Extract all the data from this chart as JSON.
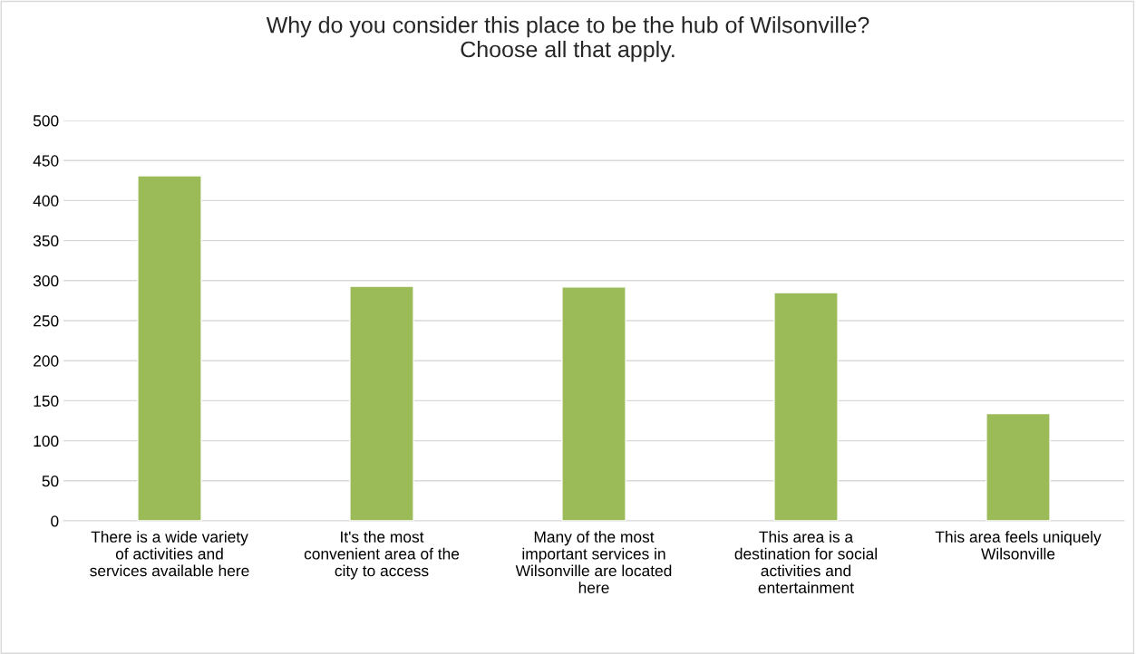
{
  "chart_data": {
    "type": "bar",
    "title": "Why do you consider this place to be the hub of Wilsonville?\nChoose all that apply.",
    "categories": [
      "There is a wide variety\nof activities and\nservices available here",
      "It's the most\nconvenient area of the\ncity to access",
      "Many of the most\nimportant services in\nWilsonville are located\nhere",
      "This area is a\ndestination for social\nactivities and\nentertainment",
      "This area feels uniquely\nWilsonville"
    ],
    "values": [
      431,
      293,
      292,
      285,
      134
    ],
    "color": "#9bbb59",
    "ylim": [
      0,
      500
    ],
    "yticks": [
      0,
      50,
      100,
      150,
      200,
      250,
      300,
      350,
      400,
      450,
      500
    ],
    "grid": "y"
  }
}
